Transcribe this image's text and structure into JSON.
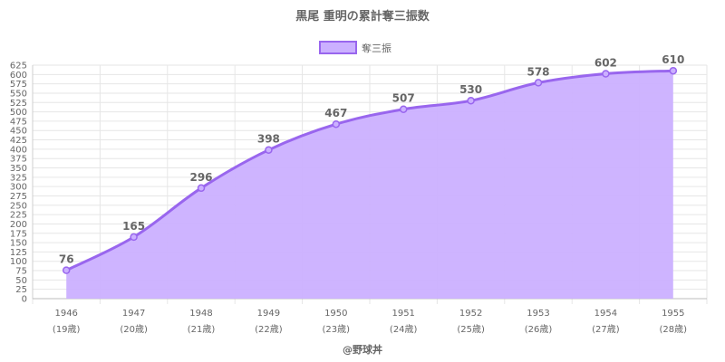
{
  "chart_data": {
    "type": "area",
    "title": "黒尾 重明の累計奪三振数",
    "categories": [
      "1946",
      "1947",
      "1948",
      "1949",
      "1950",
      "1951",
      "1952",
      "1953",
      "1954",
      "1955"
    ],
    "category_sublabels": [
      "(19歳)",
      "(20歳)",
      "(21歳)",
      "(22歳)",
      "(23歳)",
      "(24歳)",
      "(25歳)",
      "(26歳)",
      "(27歳)",
      "(28歳)"
    ],
    "series": [
      {
        "name": "奪三振",
        "values": [
          76,
          165,
          296,
          398,
          467,
          507,
          530,
          578,
          602,
          610
        ]
      }
    ],
    "ylim": [
      0,
      625
    ],
    "ytick_step": 25,
    "grid": true,
    "legend_position": "top",
    "colors": {
      "line": "#9966ee",
      "fill": "#cbb0ff",
      "grid": "#e6e6e6",
      "text": "#666666"
    },
    "credit": "@野球丼"
  }
}
